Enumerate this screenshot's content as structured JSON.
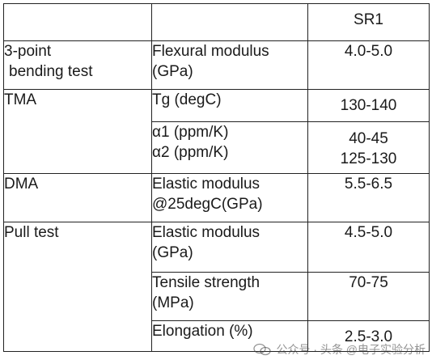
{
  "table": {
    "header": {
      "sample": "SR1"
    },
    "rows": [
      {
        "test": [
          "3-point",
          "bending test"
        ],
        "props": [
          {
            "lines": [
              "Flexural modulus",
              "(GPa)"
            ],
            "values": [
              "4.0-5.0"
            ]
          }
        ]
      },
      {
        "test": [
          "TMA"
        ],
        "props": [
          {
            "lines": [
              "Tg (degC)"
            ],
            "values": [
              "130-140"
            ]
          },
          {
            "lines": [
              "α1 (ppm/K)",
              "α2 (ppm/K)"
            ],
            "values": [
              "40-45",
              "125-130"
            ]
          }
        ]
      },
      {
        "test": [
          "DMA"
        ],
        "props": [
          {
            "lines": [
              "Elastic modulus",
              "@25degC(GPa)"
            ],
            "values": [
              "5.5-6.5"
            ]
          }
        ]
      },
      {
        "test": [
          "Pull test"
        ],
        "props": [
          {
            "lines": [
              "Elastic modulus",
              "(GPa)"
            ],
            "values": [
              "4.5-5.0"
            ]
          },
          {
            "lines": [
              "Tensile strength",
              "(MPa)"
            ],
            "values": [
              "70-75"
            ]
          },
          {
            "lines": [
              "Elongation (%)"
            ],
            "values": [
              "2.5-3.0"
            ]
          }
        ]
      }
    ]
  },
  "watermark": {
    "text": "公众号 · 头条 @电子实验分析",
    "icon": "wechat-icon"
  }
}
